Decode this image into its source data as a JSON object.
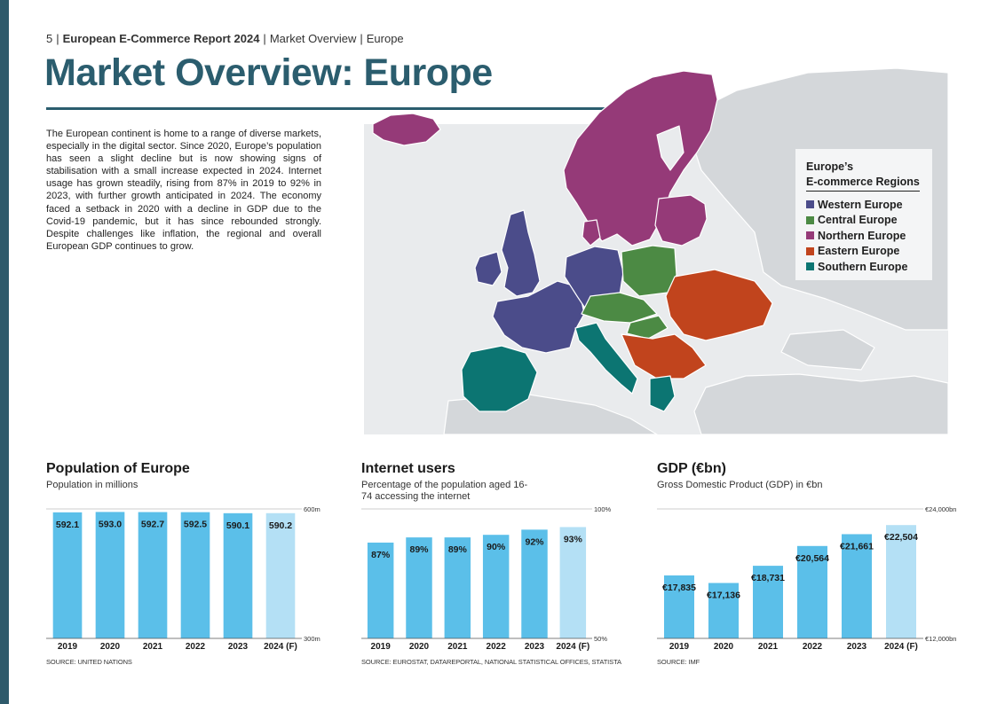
{
  "header": {
    "page_number": "5",
    "report_title": "European E-Commerce Report 2024",
    "section": "Market Overview",
    "region": "Europe"
  },
  "page_title": "Market Overview: Europe",
  "intro_text": "The European continent is home to a range of diverse markets, especially in the digital sector. Since 2020, Europe’s population has seen a slight decline but is now showing signs of stabilisation with a small increase expected in 2024. Internet usage has grown steadily, rising from 87% in 2019 to 92% in 2023, with further growth anticipated in 2024. The economy faced a setback in 2020 with a decline in GDP due to the Covid-19 pandemic, but it has since rebounded strongly. Despite challenges like inflation, the regional and overall European GDP continues to grow.",
  "map": {
    "legend_title_line1": "Europe’s",
    "legend_title_line2": "E-commerce Regions",
    "regions": [
      {
        "name": "Western Europe",
        "color": "#4b4c8a"
      },
      {
        "name": "Central Europe",
        "color": "#4c8a44"
      },
      {
        "name": "Northern Europe",
        "color": "#953a78"
      },
      {
        "name": "Eastern Europe",
        "color": "#c1441d"
      },
      {
        "name": "Southern Europe",
        "color": "#0c7572"
      }
    ],
    "non_region_color": "#d4d7da"
  },
  "colors": {
    "accent": "#2b5d6e",
    "bar": "#5bbfe9",
    "bar_forecast": "#b4e0f5"
  },
  "chart_data": [
    {
      "type": "bar",
      "title": "Population of Europe",
      "subtitle": "Population in millions",
      "categories": [
        "2019",
        "2020",
        "2021",
        "2022",
        "2023",
        "2024 (F)"
      ],
      "values": [
        592.1,
        593.0,
        592.7,
        592.5,
        590.1,
        590.2
      ],
      "value_labels": [
        "592.1",
        "593.0",
        "592.7",
        "592.5",
        "590.1",
        "590.2"
      ],
      "forecast_index": 5,
      "ylim": [
        300,
        600
      ],
      "y_top_label": "600m",
      "y_bottom_label": "300m",
      "source": "SOURCE: UNITED NATIONS"
    },
    {
      "type": "bar",
      "title": "Internet users",
      "subtitle": "Percentage of the population aged 16-74 accessing the internet",
      "categories": [
        "2019",
        "2020",
        "2021",
        "2022",
        "2023",
        "2024 (F)"
      ],
      "values": [
        87,
        89,
        89,
        90,
        92,
        93
      ],
      "value_labels": [
        "87%",
        "89%",
        "89%",
        "90%",
        "92%",
        "93%"
      ],
      "forecast_index": 5,
      "ylim": [
        50,
        100
      ],
      "y_top_label": "100%",
      "y_bottom_label": "50%",
      "source": "SOURCE: EUROSTAT, DATAREPORTAL, NATIONAL STATISTICAL OFFICES, STATISTA"
    },
    {
      "type": "bar",
      "title": "GDP (€bn)",
      "subtitle": "Gross Domestic Product (GDP) in €bn",
      "categories": [
        "2019",
        "2020",
        "2021",
        "2022",
        "2023",
        "2024 (F)"
      ],
      "values": [
        17835,
        17136,
        18731,
        20564,
        21661,
        22504
      ],
      "value_labels": [
        "€17,835",
        "€17,136",
        "€18,731",
        "€20,564",
        "€21,661",
        "€22,504"
      ],
      "forecast_index": 5,
      "ylim": [
        12000,
        24000
      ],
      "y_top_label": "€24,000bn",
      "y_bottom_label": "€12,000bn",
      "source": "SOURCE: IMF"
    }
  ]
}
